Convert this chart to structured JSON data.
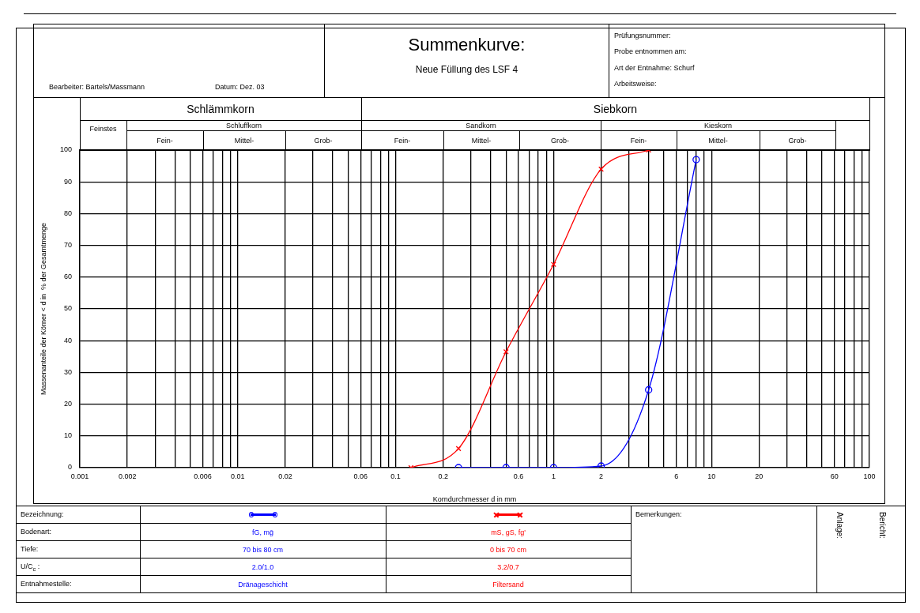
{
  "chart_data": {
    "type": "line",
    "title": "Summenkurve:",
    "subtitle": "Neue Füllung des LSF 4",
    "xlabel": "Korndurchmesser d in mm",
    "ylabel": "Massenanteile der Körner < d in  % der Gesamtmenge",
    "log": "x",
    "grid": true,
    "legend": false,
    "xlim": [
      0.001,
      100
    ],
    "xticks": [
      0.001,
      0.002,
      {
        "value": 0.003,
        "label": null
      },
      {
        "value": 0.004,
        "label": null
      },
      {
        "value": 0.005,
        "label": null
      },
      0.006,
      {
        "value": 0.007,
        "label": null
      },
      {
        "value": 0.008,
        "label": null
      },
      {
        "value": 0.009,
        "label": null
      },
      0.01,
      0.02,
      {
        "value": 0.03,
        "label": null
      },
      {
        "value": 0.04,
        "label": null
      },
      {
        "value": 0.05,
        "label": null
      },
      0.06,
      {
        "value": 0.07,
        "label": null
      },
      {
        "value": 0.08,
        "label": null
      },
      {
        "value": 0.09,
        "label": null
      },
      0.1,
      0.2,
      {
        "value": 0.3,
        "label": null
      },
      {
        "value": 0.4,
        "label": null
      },
      {
        "value": 0.5,
        "label": null
      },
      0.6,
      {
        "value": 0.7,
        "label": null
      },
      {
        "value": 0.8,
        "label": null
      },
      {
        "value": 0.9,
        "label": null
      },
      1,
      2,
      {
        "value": 3,
        "label": null
      },
      {
        "value": 4,
        "label": null
      },
      {
        "value": 5,
        "label": null
      },
      6,
      {
        "value": 7,
        "label": null
      },
      {
        "value": 8,
        "label": null
      },
      {
        "value": 9,
        "label": null
      },
      10,
      20,
      {
        "value": 30,
        "label": null
      },
      {
        "value": 40,
        "label": null
      },
      {
        "value": 50,
        "label": null
      },
      60,
      {
        "value": 70,
        "label": null
      },
      {
        "value": 80,
        "label": null
      },
      {
        "value": 90,
        "label": null
      },
      100
    ],
    "ylim": [
      0,
      100
    ],
    "yticks": [
      0,
      10,
      20,
      30,
      40,
      50,
      60,
      70,
      80,
      90,
      100
    ],
    "series": [
      {
        "color": "#0000ff",
        "marker": "circle",
        "x": [
          0.25,
          0.5,
          1,
          2,
          4,
          8
        ],
        "values": [
          0,
          0,
          0,
          0.5,
          24.5,
          97
        ]
      },
      {
        "color": "#ff0000",
        "marker": "cross",
        "x": [
          0.125,
          0.25,
          0.5,
          1,
          2,
          4
        ],
        "values": [
          0,
          6,
          36.5,
          64,
          94,
          100
        ]
      }
    ],
    "annotations": [
      "Bearbeiter: Bartels/Massmann",
      "Datum: Dez. 03",
      "Prüfungsnummer:",
      "Probe entnommen am:",
      "Art der Entnahme:  Schurf",
      "Arbeitsweise:",
      "Bezeichnung:",
      "Bodenart:",
      "Tiefe:",
      "U/C$_{c}$ :",
      "Entnahmestelle:",
      "fG, mḡ",
      "70 bis 80 cm",
      "2.0/1.0",
      "Dränageschicht",
      "mS, gS, fg'",
      "0 bis 70 cm",
      "3.2/0.7",
      "Filtersand",
      "Bemerkungen:",
      "Anlage:",
      "Bericht:",
      "Schlämmkorn",
      "Siebkorn",
      "Feinstes",
      "Schluffkorn",
      "Sandkorn",
      "Kieskorn",
      "Fein-",
      "Mittel-",
      "Grob-",
      "Fein-",
      "Mittel-",
      "Grob-",
      "Fein-",
      "Mittel-",
      "Grob-"
    ]
  }
}
